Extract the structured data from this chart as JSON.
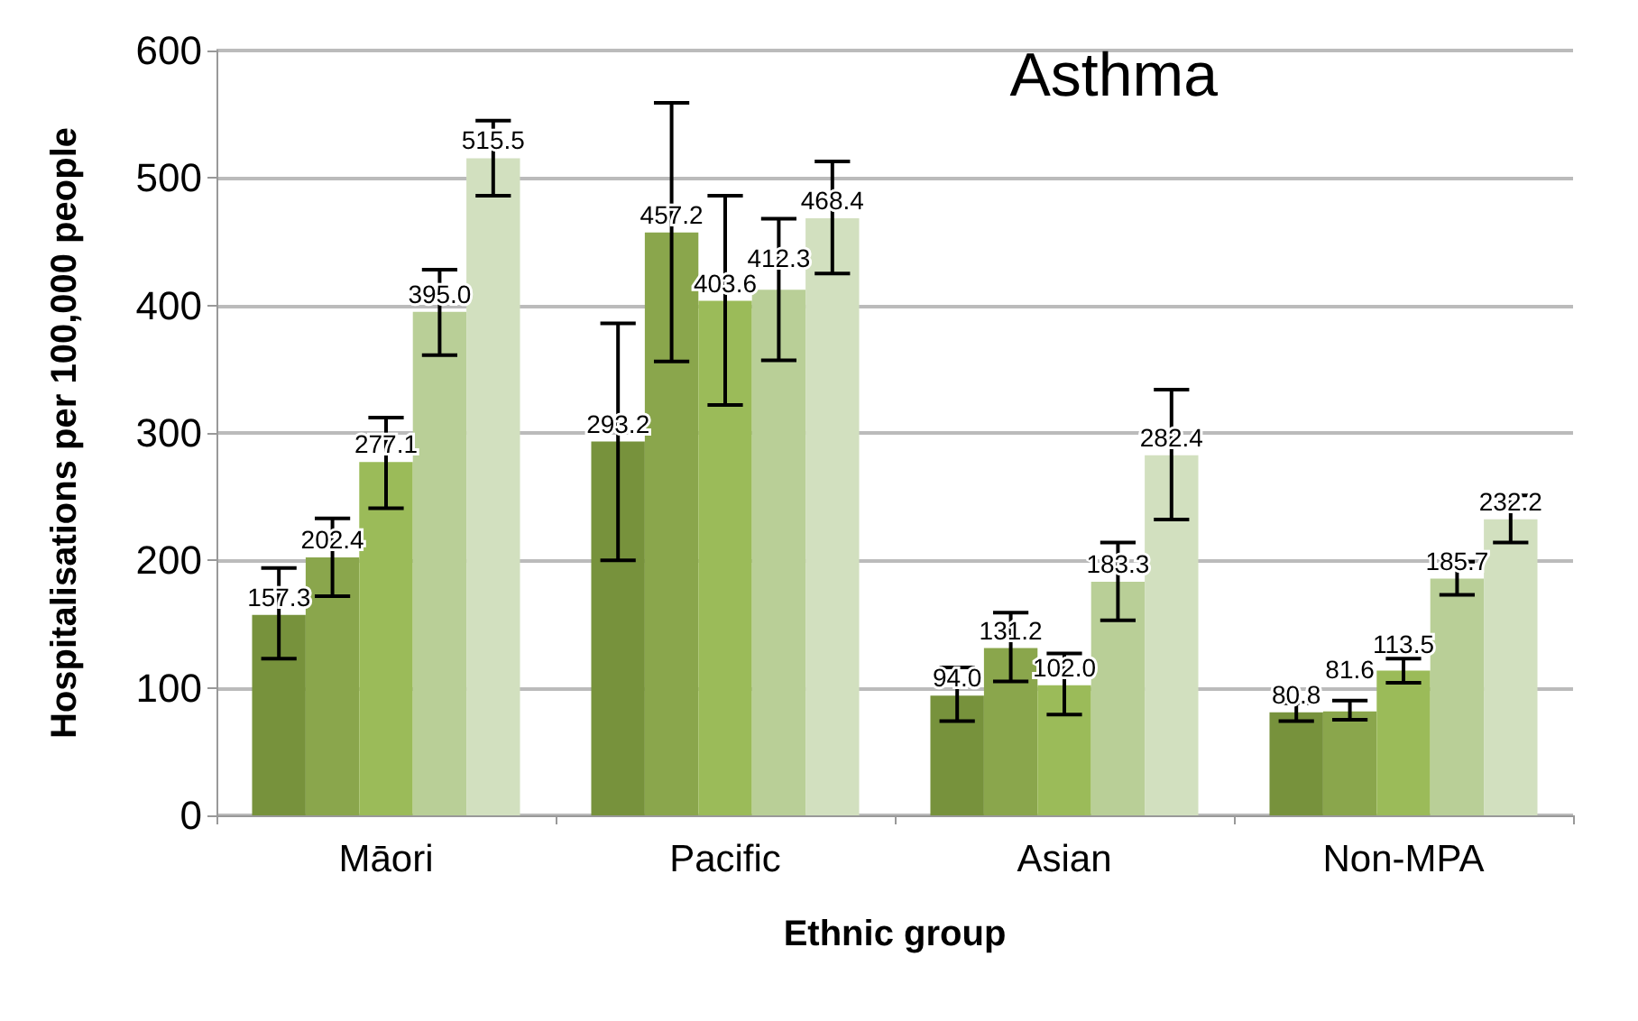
{
  "chart_data": {
    "type": "bar",
    "title": "Asthma",
    "xlabel": "Ethnic group",
    "ylabel": "Hospitalisations per 100,000 people",
    "categories": [
      "Māori",
      "Pacific",
      "Asian",
      "Non-MPA"
    ],
    "series": [
      {
        "color": "#77923c",
        "values": [
          157.3,
          293.2,
          94.0,
          80.8
        ],
        "value_labels": [
          "157.3",
          "293.2",
          "94.0",
          "80.8"
        ],
        "errors": [
          [
            123,
            194
          ],
          [
            200,
            386
          ],
          [
            74,
            116
          ],
          [
            74,
            88
          ]
        ]
      },
      {
        "color": "#8aa64c",
        "values": [
          202.4,
          457.2,
          131.2,
          81.6
        ],
        "value_labels": [
          "202.4",
          "457.2",
          "131.2",
          "81.6"
        ],
        "errors": [
          [
            172,
            233
          ],
          [
            356,
            559
          ],
          [
            105,
            159
          ],
          [
            75,
            90
          ]
        ]
      },
      {
        "color": "#9bbb59",
        "values": [
          277.1,
          403.6,
          102.0,
          113.5
        ],
        "value_labels": [
          "277.1",
          "403.6",
          "102.0",
          "113.5"
        ],
        "errors": [
          [
            241,
            312
          ],
          [
            322,
            486
          ],
          [
            79,
            127
          ],
          [
            104,
            123
          ]
        ]
      },
      {
        "color": "#b9cf97",
        "values": [
          395.0,
          412.3,
          183.3,
          185.7
        ],
        "value_labels": [
          "395.0",
          "412.3",
          "183.3",
          "185.7"
        ],
        "errors": [
          [
            361,
            428
          ],
          [
            357,
            468
          ],
          [
            153,
            214
          ],
          [
            173,
            199
          ]
        ]
      },
      {
        "color": "#d2e0bf",
        "values": [
          515.5,
          468.4,
          282.4,
          232.2
        ],
        "value_labels": [
          "515.5",
          "468.4",
          "282.4",
          "232.2"
        ],
        "errors": [
          [
            486,
            545
          ],
          [
            425,
            513
          ],
          [
            232,
            334
          ],
          [
            214,
            251
          ]
        ]
      }
    ],
    "ylim": [
      0,
      600
    ],
    "yticks": [
      0,
      100,
      200,
      300,
      400,
      500,
      600
    ],
    "grid": "y"
  }
}
